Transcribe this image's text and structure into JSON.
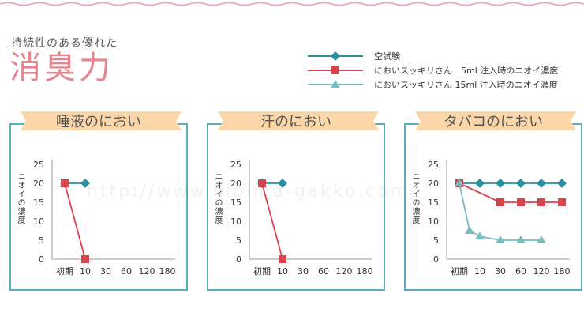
{
  "header": {
    "subtitle": "持続性のある優れた",
    "title": "消臭力"
  },
  "legend": [
    {
      "label": "空試験",
      "color": "#2a8f9f",
      "marker": "diamond"
    },
    {
      "label": "においスッキリさん　5ml 注入時のニオイ濃度",
      "color": "#d9434b",
      "marker": "square"
    },
    {
      "label": "においスッキリさん 15ml 注入時のニオイ濃度",
      "color": "#78bcbf",
      "marker": "triangle"
    }
  ],
  "watermark": "http://www.nioima-gakko.com",
  "chart_data": [
    {
      "type": "line",
      "title": "唾液のにおい",
      "ylabel": "ニオイの濃度",
      "categories": [
        "初期",
        "10",
        "30",
        "60",
        "120",
        "180"
      ],
      "yticks": [
        0,
        5,
        10,
        15,
        20,
        25
      ],
      "ylim": [
        0,
        25
      ],
      "series": [
        {
          "name": "空試験",
          "values": [
            20,
            20,
            null,
            null,
            null,
            null
          ]
        },
        {
          "name": "においスッキリさん　5ml 注入時のニオイ濃度",
          "values": [
            20,
            0,
            null,
            null,
            null,
            null
          ]
        }
      ]
    },
    {
      "type": "line",
      "title": "汗のにおい",
      "ylabel": "ニオイの濃度",
      "categories": [
        "初期",
        "10",
        "30",
        "60",
        "120",
        "180"
      ],
      "yticks": [
        0,
        5,
        10,
        15,
        20,
        25
      ],
      "ylim": [
        0,
        25
      ],
      "series": [
        {
          "name": "空試験",
          "values": [
            20,
            20,
            null,
            null,
            null,
            null
          ]
        },
        {
          "name": "においスッキリさん　5ml 注入時のニオイ濃度",
          "values": [
            20,
            0,
            null,
            null,
            null,
            null
          ]
        }
      ]
    },
    {
      "type": "line",
      "title": "タバコのにおい",
      "ylabel": "ニオイの濃度",
      "categories": [
        "初期",
        "10",
        "30",
        "60",
        "120",
        "180"
      ],
      "yticks": [
        0,
        5,
        10,
        15,
        20,
        25
      ],
      "ylim": [
        0,
        25
      ],
      "series": [
        {
          "name": "空試験",
          "values": [
            20,
            20,
            20,
            20,
            20,
            20
          ]
        },
        {
          "name": "においスッキリさん　5ml 注入時のニオイ濃度",
          "values": [
            20,
            null,
            15,
            15,
            15,
            15
          ]
        },
        {
          "name": "においスッキリさん 15ml 注入時のニオイ濃度",
          "values": [
            20,
            7.5,
            6,
            5,
            5,
            5
          ],
          "extra_x": [
            0,
            0.5,
            1,
            2,
            3,
            4
          ]
        }
      ]
    }
  ],
  "colors": {
    "title": "#e9828d",
    "panel_border": "#5aaeba",
    "banner": "#fbd6a8",
    "series": [
      "#2a8f9f",
      "#d9434b",
      "#78bcbf"
    ]
  }
}
